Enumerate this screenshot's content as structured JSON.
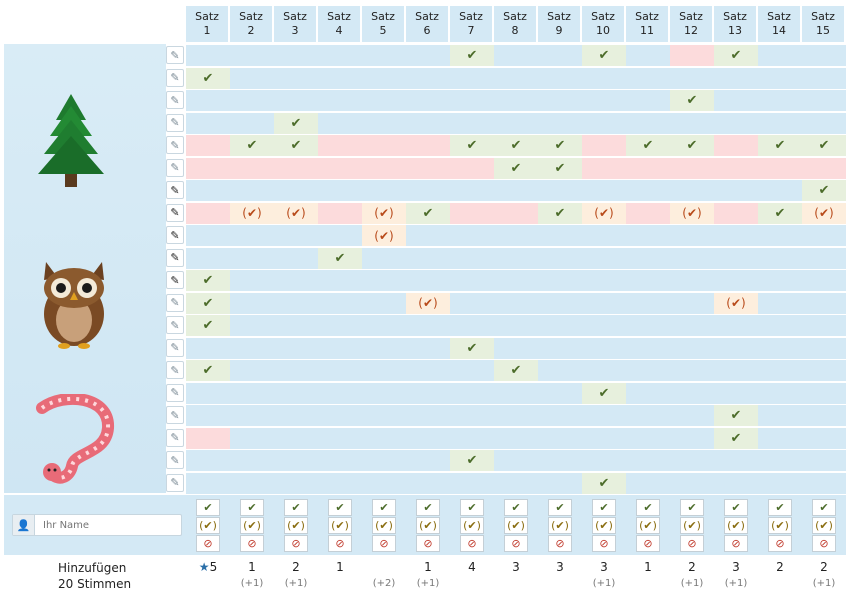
{
  "columns": [
    "Satz 1",
    "Satz 2",
    "Satz 3",
    "Satz 4",
    "Satz 5",
    "Satz 6",
    "Satz 7",
    "Satz 8",
    "Satz 9",
    "Satz 10",
    "Satz 11",
    "Satz 12",
    "Satz 13",
    "Satz 14",
    "Satz 15"
  ],
  "rows": [
    {
      "votes": [
        ".",
        ".",
        ".",
        ".",
        ".",
        ".",
        "y",
        ".",
        ".",
        "y",
        ".",
        "n",
        "y",
        ".",
        "."
      ]
    },
    {
      "votes": [
        "y",
        ".",
        ".",
        ".",
        ".",
        ".",
        ".",
        ".",
        ".",
        ".",
        ".",
        ".",
        ".",
        ".",
        "."
      ]
    },
    {
      "votes": [
        ".",
        ".",
        ".",
        ".",
        ".",
        ".",
        ".",
        ".",
        ".",
        ".",
        ".",
        "y",
        ".",
        ".",
        "."
      ]
    },
    {
      "votes": [
        ".",
        ".",
        "y",
        ".",
        ".",
        ".",
        ".",
        ".",
        ".",
        ".",
        ".",
        ".",
        ".",
        ".",
        "."
      ]
    },
    {
      "votes": [
        "n",
        "y",
        "y",
        "n",
        "n",
        "n",
        "y",
        "y",
        "y",
        "n",
        "y",
        "y",
        "n",
        "y",
        "y"
      ]
    },
    {
      "votes": [
        "n",
        "n",
        "n",
        "n",
        "n",
        "n",
        "n",
        "y",
        "y",
        "n",
        "n",
        "n",
        "n",
        "n",
        "n"
      ]
    },
    {
      "votes": [
        ".",
        ".",
        ".",
        ".",
        ".",
        ".",
        ".",
        ".",
        ".",
        ".",
        ".",
        ".",
        ".",
        ".",
        "y"
      ]
    },
    {
      "votes": [
        "n",
        "m",
        "m",
        "n",
        "m",
        "y",
        "n",
        "n",
        "y",
        "m",
        "n",
        "m",
        "n",
        "y",
        "m"
      ]
    },
    {
      "votes": [
        ".",
        ".",
        ".",
        ".",
        "m",
        ".",
        ".",
        ".",
        ".",
        ".",
        ".",
        ".",
        ".",
        ".",
        "."
      ]
    },
    {
      "votes": [
        ".",
        ".",
        ".",
        "y",
        ".",
        ".",
        ".",
        ".",
        ".",
        ".",
        ".",
        ".",
        ".",
        ".",
        "."
      ]
    },
    {
      "votes": [
        "y",
        ".",
        ".",
        ".",
        ".",
        ".",
        ".",
        ".",
        ".",
        ".",
        ".",
        ".",
        ".",
        ".",
        "."
      ]
    },
    {
      "votes": [
        "y",
        ".",
        ".",
        ".",
        ".",
        "m",
        ".",
        ".",
        ".",
        ".",
        ".",
        ".",
        "m",
        ".",
        "."
      ]
    },
    {
      "votes": [
        "y",
        ".",
        ".",
        ".",
        ".",
        ".",
        ".",
        ".",
        ".",
        ".",
        ".",
        ".",
        ".",
        ".",
        "."
      ]
    },
    {
      "votes": [
        ".",
        ".",
        ".",
        ".",
        ".",
        ".",
        "y",
        ".",
        ".",
        ".",
        ".",
        ".",
        ".",
        ".",
        "."
      ]
    },
    {
      "votes": [
        "y",
        ".",
        ".",
        ".",
        ".",
        ".",
        ".",
        "y",
        ".",
        ".",
        ".",
        ".",
        ".",
        ".",
        "."
      ]
    },
    {
      "votes": [
        ".",
        ".",
        ".",
        ".",
        ".",
        ".",
        ".",
        ".",
        ".",
        "y",
        ".",
        ".",
        ".",
        ".",
        "."
      ]
    },
    {
      "votes": [
        ".",
        ".",
        ".",
        ".",
        ".",
        ".",
        ".",
        ".",
        ".",
        ".",
        ".",
        ".",
        "y",
        ".",
        "."
      ]
    },
    {
      "votes": [
        "n",
        ".",
        ".",
        ".",
        ".",
        ".",
        ".",
        ".",
        ".",
        ".",
        ".",
        ".",
        "y",
        ".",
        "."
      ]
    },
    {
      "votes": [
        ".",
        ".",
        ".",
        ".",
        ".",
        ".",
        "y",
        ".",
        ".",
        ".",
        ".",
        ".",
        ".",
        ".",
        "."
      ]
    },
    {
      "votes": [
        ".",
        ".",
        ".",
        ".",
        ".",
        ".",
        ".",
        ".",
        ".",
        "y",
        ".",
        ".",
        ".",
        ".",
        "."
      ]
    }
  ],
  "name_input": {
    "placeholder": "Ihr Name"
  },
  "footer": {
    "add_label": "Hinzufügen",
    "votes_label": "20 Stimmen",
    "best_star": "★",
    "totals": [
      "5",
      "1",
      "2",
      "1",
      "",
      "1",
      "4",
      "3",
      "3",
      "3",
      "1",
      "2",
      "3",
      "2",
      "2"
    ],
    "subtotals": [
      "",
      "(+1)",
      "(+1)",
      "",
      "(+2)",
      "(+1)",
      "",
      "",
      "",
      "(+1)",
      "",
      "(+1)",
      "(+1)",
      "",
      "(+1)"
    ]
  },
  "symbols": {
    "yes": "✔",
    "maybe": "(✔)",
    "no": "⊘",
    "edit": "✎",
    "user": "👤"
  },
  "colors": {
    "header_bg": "#d4e9f5",
    "yes_bg": "#e7f0dd",
    "no_bg": "#fcdbdc",
    "maybe_bg": "#fdeedd"
  }
}
